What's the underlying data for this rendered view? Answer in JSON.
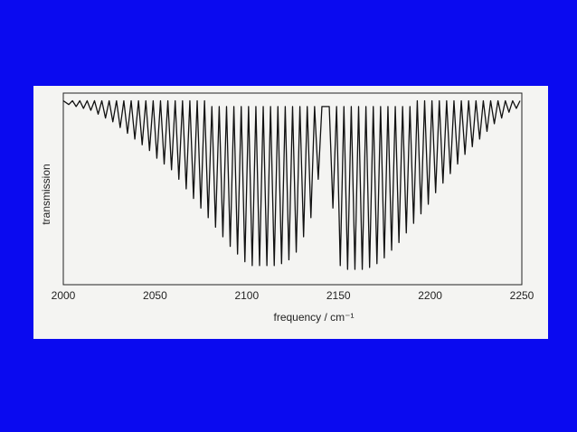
{
  "chart_data": {
    "type": "line",
    "x_label": "frequency / cm⁻¹",
    "y_label": "transmission",
    "color": "#111111",
    "xlim": [
      2000,
      2250
    ],
    "xticks": [
      2000,
      2050,
      2100,
      2150,
      2200,
      2250
    ],
    "ylim": [
      0,
      1
    ],
    "x": [
      2000,
      2003,
      2005,
      2007,
      2009,
      2011,
      2013,
      2015,
      2017,
      2019,
      2021,
      2023,
      2025,
      2027,
      2029,
      2031,
      2033,
      2035,
      2037,
      2039,
      2041,
      2043,
      2045,
      2047,
      2049,
      2051,
      2053,
      2055,
      2057,
      2059,
      2061,
      2063,
      2065,
      2067,
      2069,
      2071,
      2073,
      2075,
      2077,
      2079,
      2081,
      2083,
      2085,
      2087,
      2089,
      2091,
      2093,
      2095,
      2097,
      2099,
      2101,
      2103,
      2105,
      2107,
      2109,
      2111,
      2113,
      2115,
      2117,
      2119,
      2121,
      2123,
      2125,
      2127,
      2129,
      2131,
      2133,
      2135,
      2137,
      2139,
      2141,
      2145,
      2147,
      2149,
      2151,
      2153,
      2155,
      2157,
      2159,
      2161,
      2163,
      2165,
      2167,
      2169,
      2171,
      2173,
      2175,
      2177,
      2179,
      2181,
      2183,
      2185,
      2187,
      2189,
      2191,
      2193,
      2195,
      2197,
      2199,
      2201,
      2203,
      2205,
      2207,
      2209,
      2211,
      2213,
      2215,
      2217,
      2219,
      2221,
      2223,
      2225,
      2227,
      2229,
      2231,
      2233,
      2235,
      2237,
      2239,
      2241,
      2243,
      2245,
      2247,
      2249
    ],
    "values": [
      0.96,
      0.94,
      0.96,
      0.93,
      0.96,
      0.92,
      0.96,
      0.91,
      0.96,
      0.89,
      0.96,
      0.87,
      0.96,
      0.85,
      0.96,
      0.82,
      0.96,
      0.79,
      0.96,
      0.76,
      0.96,
      0.73,
      0.96,
      0.7,
      0.96,
      0.66,
      0.96,
      0.63,
      0.96,
      0.6,
      0.96,
      0.55,
      0.96,
      0.5,
      0.96,
      0.45,
      0.96,
      0.4,
      0.96,
      0.35,
      0.93,
      0.3,
      0.93,
      0.25,
      0.93,
      0.2,
      0.93,
      0.16,
      0.93,
      0.12,
      0.93,
      0.1,
      0.93,
      0.1,
      0.93,
      0.1,
      0.93,
      0.1,
      0.93,
      0.11,
      0.93,
      0.13,
      0.93,
      0.17,
      0.93,
      0.25,
      0.93,
      0.35,
      0.93,
      0.55,
      0.93,
      0.93,
      0.4,
      0.93,
      0.1,
      0.93,
      0.08,
      0.93,
      0.08,
      0.93,
      0.08,
      0.93,
      0.09,
      0.93,
      0.11,
      0.93,
      0.14,
      0.93,
      0.18,
      0.93,
      0.22,
      0.93,
      0.27,
      0.93,
      0.32,
      0.96,
      0.37,
      0.96,
      0.42,
      0.96,
      0.48,
      0.96,
      0.53,
      0.96,
      0.58,
      0.96,
      0.63,
      0.96,
      0.68,
      0.96,
      0.72,
      0.96,
      0.76,
      0.96,
      0.8,
      0.96,
      0.84,
      0.96,
      0.87,
      0.96,
      0.9,
      0.96,
      0.92,
      0.96
    ]
  }
}
